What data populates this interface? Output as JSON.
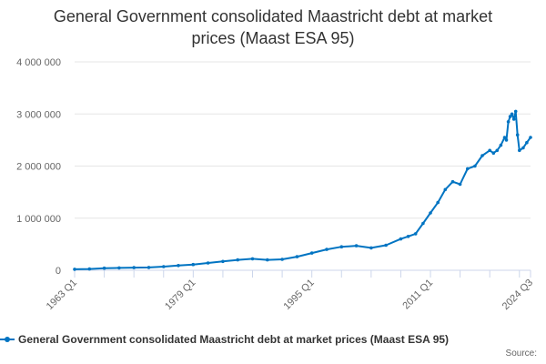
{
  "chart_data": {
    "type": "line",
    "title": "General Government consolidated Maastricht debt at market prices (Maast ESA 95)",
    "xlabel": "",
    "ylabel": "",
    "x_tick_labels": [
      "1963 Q1",
      "1979 Q1",
      "1995 Q1",
      "2011 Q1",
      "2024 Q3"
    ],
    "y_tick_labels": [
      "0",
      "1 000 000",
      "2 000 000",
      "3 000 000",
      "4 000 000"
    ],
    "ylim": [
      0,
      4000000
    ],
    "grid": "horizontal",
    "legend_position": "bottom",
    "series": [
      {
        "name": "General Government consolidated Maastricht debt at market prices (Maast ESA 95)",
        "color": "#0074c2",
        "x": [
          "1963 Q1",
          "1965 Q1",
          "1967 Q1",
          "1969 Q1",
          "1971 Q1",
          "1973 Q1",
          "1975 Q1",
          "1977 Q1",
          "1979 Q1",
          "1981 Q1",
          "1983 Q1",
          "1985 Q1",
          "1987 Q1",
          "1989 Q1",
          "1991 Q1",
          "1993 Q1",
          "1995 Q1",
          "1997 Q1",
          "1999 Q1",
          "2001 Q1",
          "2003 Q1",
          "2005 Q1",
          "2007 Q1",
          "2008 Q1",
          "2009 Q1",
          "2010 Q1",
          "2011 Q1",
          "2012 Q1",
          "2013 Q1",
          "2014 Q1",
          "2015 Q1",
          "2016 Q1",
          "2017 Q1",
          "2018 Q1",
          "2019 Q1",
          "2019 Q3",
          "2020 Q1",
          "2020 Q3",
          "2021 Q1",
          "2021 Q2",
          "2021 Q3",
          "2021 Q4",
          "2022 Q1",
          "2022 Q2",
          "2022 Q3",
          "2022 Q4",
          "2023 Q1",
          "2023 Q3",
          "2024 Q1",
          "2024 Q3"
        ],
        "values": [
          20000,
          25000,
          40000,
          45000,
          50000,
          55000,
          70000,
          90000,
          110000,
          140000,
          170000,
          200000,
          220000,
          200000,
          210000,
          260000,
          330000,
          400000,
          450000,
          470000,
          430000,
          480000,
          600000,
          650000,
          700000,
          900000,
          1100000,
          1300000,
          1550000,
          1700000,
          1650000,
          1950000,
          2000000,
          2200000,
          2300000,
          2250000,
          2300000,
          2400000,
          2550000,
          2500000,
          2850000,
          2950000,
          3000000,
          2900000,
          3050000,
          2600000,
          2300000,
          2350000,
          2450000,
          2550000
        ]
      }
    ]
  },
  "credits": "Source:"
}
